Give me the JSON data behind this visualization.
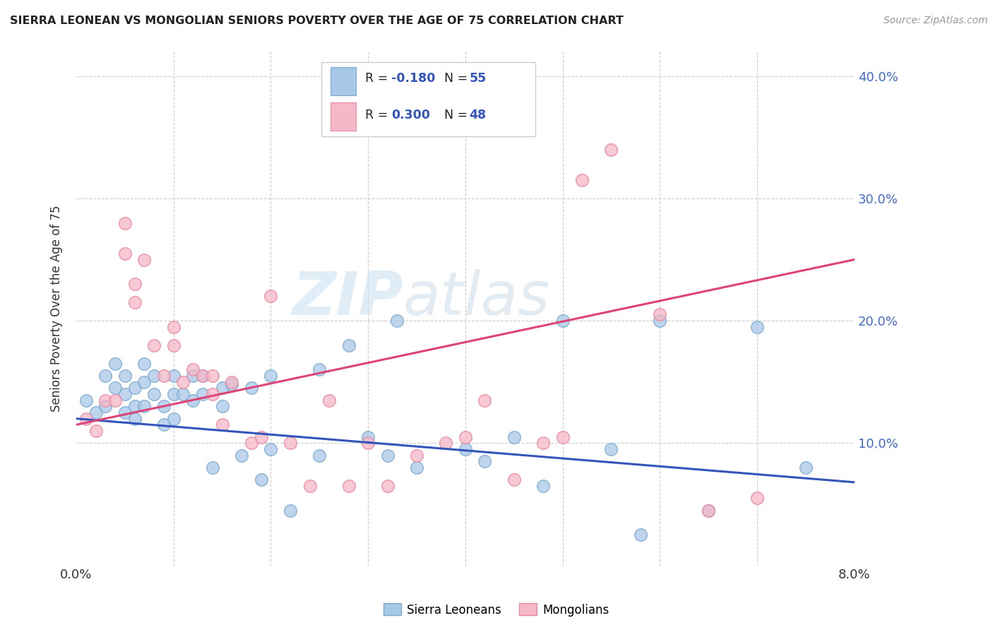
{
  "title": "SIERRA LEONEAN VS MONGOLIAN SENIORS POVERTY OVER THE AGE OF 75 CORRELATION CHART",
  "source": "Source: ZipAtlas.com",
  "ylabel": "Seniors Poverty Over the Age of 75",
  "xlim": [
    0.0,
    0.08
  ],
  "ylim": [
    0.0,
    0.42
  ],
  "yticks": [
    0.1,
    0.2,
    0.3,
    0.4
  ],
  "ytick_labels": [
    "10.0%",
    "20.0%",
    "30.0%",
    "40.0%"
  ],
  "grid_color": "#cccccc",
  "background_color": "#ffffff",
  "watermark_zip": "ZIP",
  "watermark_atlas": "atlas",
  "sierra_color": "#a8c8e8",
  "sierra_edge_color": "#7aaad0",
  "mongolia_color": "#f5b8c8",
  "mongolia_edge_color": "#e888a0",
  "sierra_line_color": "#3355bb",
  "mongolia_line_color": "#dd4477",
  "sierra_x": [
    0.001,
    0.002,
    0.003,
    0.003,
    0.004,
    0.004,
    0.005,
    0.005,
    0.005,
    0.006,
    0.006,
    0.006,
    0.007,
    0.007,
    0.007,
    0.008,
    0.008,
    0.009,
    0.009,
    0.01,
    0.01,
    0.01,
    0.011,
    0.012,
    0.012,
    0.013,
    0.013,
    0.014,
    0.015,
    0.015,
    0.016,
    0.017,
    0.018,
    0.019,
    0.02,
    0.02,
    0.022,
    0.025,
    0.025,
    0.028,
    0.03,
    0.032,
    0.033,
    0.035,
    0.04,
    0.042,
    0.045,
    0.048,
    0.05,
    0.055,
    0.058,
    0.06,
    0.065,
    0.07,
    0.075
  ],
  "sierra_y": [
    0.135,
    0.125,
    0.155,
    0.13,
    0.165,
    0.145,
    0.155,
    0.14,
    0.125,
    0.145,
    0.13,
    0.12,
    0.165,
    0.15,
    0.13,
    0.155,
    0.14,
    0.13,
    0.115,
    0.155,
    0.14,
    0.12,
    0.14,
    0.155,
    0.135,
    0.155,
    0.14,
    0.08,
    0.145,
    0.13,
    0.148,
    0.09,
    0.145,
    0.07,
    0.155,
    0.095,
    0.045,
    0.16,
    0.09,
    0.18,
    0.105,
    0.09,
    0.2,
    0.08,
    0.095,
    0.085,
    0.105,
    0.065,
    0.2,
    0.095,
    0.025,
    0.2,
    0.045,
    0.195,
    0.08
  ],
  "mongolia_x": [
    0.001,
    0.002,
    0.003,
    0.004,
    0.005,
    0.005,
    0.006,
    0.006,
    0.007,
    0.008,
    0.009,
    0.01,
    0.01,
    0.011,
    0.012,
    0.013,
    0.014,
    0.014,
    0.015,
    0.016,
    0.018,
    0.019,
    0.02,
    0.022,
    0.024,
    0.026,
    0.028,
    0.03,
    0.032,
    0.035,
    0.038,
    0.04,
    0.042,
    0.045,
    0.048,
    0.05,
    0.052,
    0.055,
    0.06,
    0.065,
    0.07
  ],
  "mongolia_y": [
    0.12,
    0.11,
    0.135,
    0.135,
    0.28,
    0.255,
    0.23,
    0.215,
    0.25,
    0.18,
    0.155,
    0.195,
    0.18,
    0.15,
    0.16,
    0.155,
    0.155,
    0.14,
    0.115,
    0.15,
    0.1,
    0.105,
    0.22,
    0.1,
    0.065,
    0.135,
    0.065,
    0.1,
    0.065,
    0.09,
    0.1,
    0.105,
    0.135,
    0.07,
    0.1,
    0.105,
    0.315,
    0.34,
    0.205,
    0.045,
    0.055
  ],
  "sierra_trend_x": [
    0.0,
    0.08
  ],
  "sierra_trend_y": [
    0.12,
    0.068
  ],
  "mongolia_trend_x": [
    0.0,
    0.08
  ],
  "mongolia_trend_y": [
    0.115,
    0.25
  ]
}
